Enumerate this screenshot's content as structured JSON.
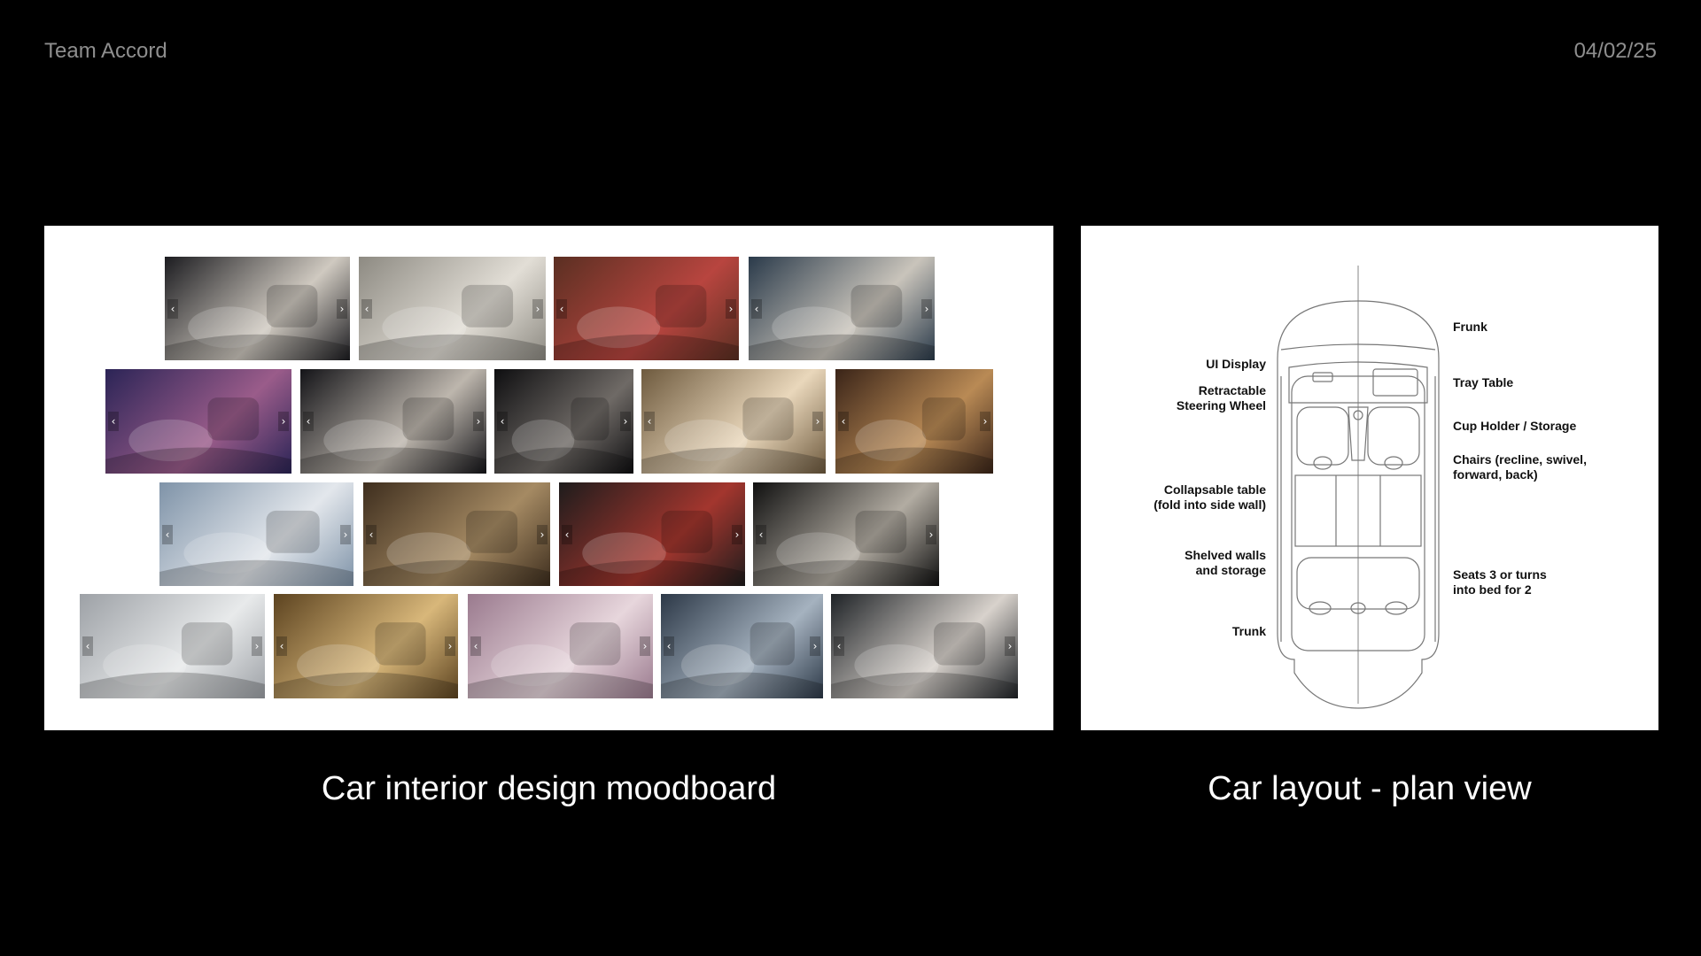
{
  "header": {
    "team": "Team Accord",
    "date": "04/02/25"
  },
  "moodboard": {
    "caption": "Car interior design moodboard",
    "images": [
      {
        "name": "pod-seat-white",
        "g": [
          "#1c1c20",
          "#cfc9c0"
        ]
      },
      {
        "name": "lounge-woman-table",
        "g": [
          "#8d8a82",
          "#e2ded6"
        ]
      },
      {
        "name": "red-concept-car",
        "g": [
          "#5a2f22",
          "#b8453f"
        ]
      },
      {
        "name": "city-lounge-couple",
        "g": [
          "#2a3a4a",
          "#c9c4bb"
        ]
      },
      {
        "name": "purple-glass-car",
        "g": [
          "#2b2456",
          "#9a5c8a"
        ]
      },
      {
        "name": "pod-seat-dark",
        "g": [
          "#141418",
          "#bdb6ad"
        ]
      },
      {
        "name": "dark-cabin-seats",
        "g": [
          "#0e0e10",
          "#6f6a66"
        ]
      },
      {
        "name": "jet-cabin-beige",
        "g": [
          "#6e5a3e",
          "#e9d7bb"
        ]
      },
      {
        "name": "jet-cabin-lounge",
        "g": [
          "#3a2418",
          "#b98a55"
        ]
      },
      {
        "name": "silver-concept-car",
        "g": [
          "#7f93a8",
          "#e3e7ec"
        ]
      },
      {
        "name": "wood-dashboard",
        "g": [
          "#3e2e1e",
          "#a58a63"
        ]
      },
      {
        "name": "red-panel-interior",
        "g": [
          "#1e1c1c",
          "#a3362e"
        ]
      },
      {
        "name": "champagne-table",
        "g": [
          "#101010",
          "#b2aca2"
        ]
      },
      {
        "name": "business-meeting",
        "g": [
          "#9da1a6",
          "#e8eaeb"
        ]
      },
      {
        "name": "gold-jet-interior",
        "g": [
          "#5c4320",
          "#d8b77a"
        ]
      },
      {
        "name": "pink-seats",
        "g": [
          "#9a7a8e",
          "#e7d6dc"
        ]
      },
      {
        "name": "blue-jet-cabin",
        "g": [
          "#2c3847",
          "#a5b2bf"
        ]
      },
      {
        "name": "bed-pillow",
        "g": [
          "#1e2226",
          "#d8d2cc"
        ]
      }
    ]
  },
  "plan": {
    "caption": "Car layout - plan view",
    "labels_left": [
      {
        "key": "ui",
        "text": "UI Display"
      },
      {
        "key": "wheel",
        "text": "Retractable\nSteering Wheel"
      },
      {
        "key": "table",
        "text": "Collapsable table\n(fold into side wall)"
      },
      {
        "key": "shelves",
        "text": "Shelved walls\nand storage"
      },
      {
        "key": "trunk",
        "text": "Trunk"
      }
    ],
    "labels_right": [
      {
        "key": "frunk",
        "text": "Frunk"
      },
      {
        "key": "tray",
        "text": "Tray Table"
      },
      {
        "key": "cup",
        "text": "Cup Holder / Storage"
      },
      {
        "key": "chairs",
        "text": "Chairs (recline, swivel,\nforward, back)"
      },
      {
        "key": "seats",
        "text": "Seats 3 or turns\ninto bed for 2"
      }
    ]
  }
}
